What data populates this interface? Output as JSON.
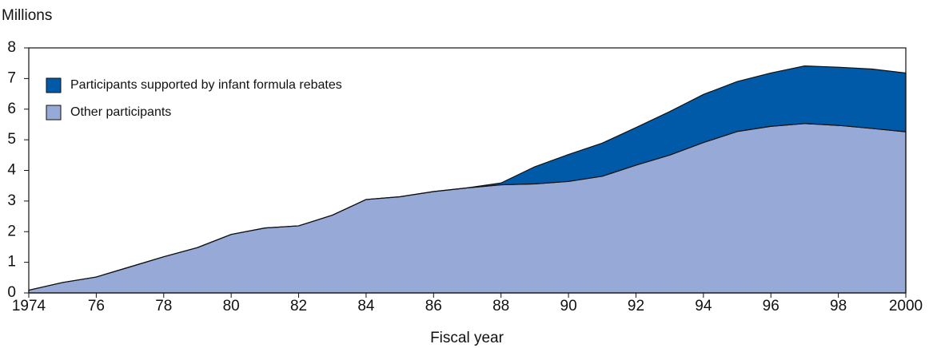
{
  "chart_data": {
    "type": "stacked_area",
    "y_label": "Millions",
    "x_label": "Fiscal year",
    "x": [
      1974,
      1975,
      1976,
      1977,
      1978,
      1979,
      1980,
      1981,
      1982,
      1983,
      1984,
      1985,
      1986,
      1987,
      1988,
      1989,
      1990,
      1991,
      1992,
      1993,
      1994,
      1995,
      1996,
      1997,
      1998,
      1999,
      2000
    ],
    "series": [
      {
        "name": "Other participants",
        "color": "#97a9d6",
        "values": [
          0.09,
          0.34,
          0.52,
          0.85,
          1.18,
          1.48,
          1.91,
          2.12,
          2.19,
          2.54,
          3.05,
          3.14,
          3.31,
          3.43,
          3.53,
          3.56,
          3.64,
          3.81,
          4.17,
          4.5,
          4.91,
          5.27,
          5.44,
          5.53,
          5.47,
          5.37,
          5.26
        ]
      },
      {
        "name": "Participants supported by infant formula rebates",
        "color": "#005aa8",
        "values": [
          0,
          0,
          0,
          0,
          0,
          0,
          0,
          0,
          0,
          0,
          0,
          0,
          0,
          0,
          0.06,
          0.56,
          0.88,
          1.08,
          1.23,
          1.42,
          1.57,
          1.63,
          1.74,
          1.88,
          1.9,
          1.94,
          1.92
        ]
      }
    ],
    "xlim": [
      1974,
      2000
    ],
    "xticks": [
      {
        "value": 1974,
        "label": "1974"
      },
      {
        "value": 1976,
        "label": "76"
      },
      {
        "value": 1978,
        "label": "78"
      },
      {
        "value": 1980,
        "label": "80"
      },
      {
        "value": 1982,
        "label": "82"
      },
      {
        "value": 1984,
        "label": "84"
      },
      {
        "value": 1986,
        "label": "86"
      },
      {
        "value": 1988,
        "label": "88"
      },
      {
        "value": 1990,
        "label": "90"
      },
      {
        "value": 1992,
        "label": "92"
      },
      {
        "value": 1994,
        "label": "94"
      },
      {
        "value": 1996,
        "label": "96"
      },
      {
        "value": 1998,
        "label": "98"
      },
      {
        "value": 2000,
        "label": "2000"
      }
    ],
    "ylim": [
      0,
      8
    ],
    "yticks": [
      0,
      1,
      2,
      3,
      4,
      5,
      6,
      7,
      8
    ],
    "legend": "upper left"
  }
}
